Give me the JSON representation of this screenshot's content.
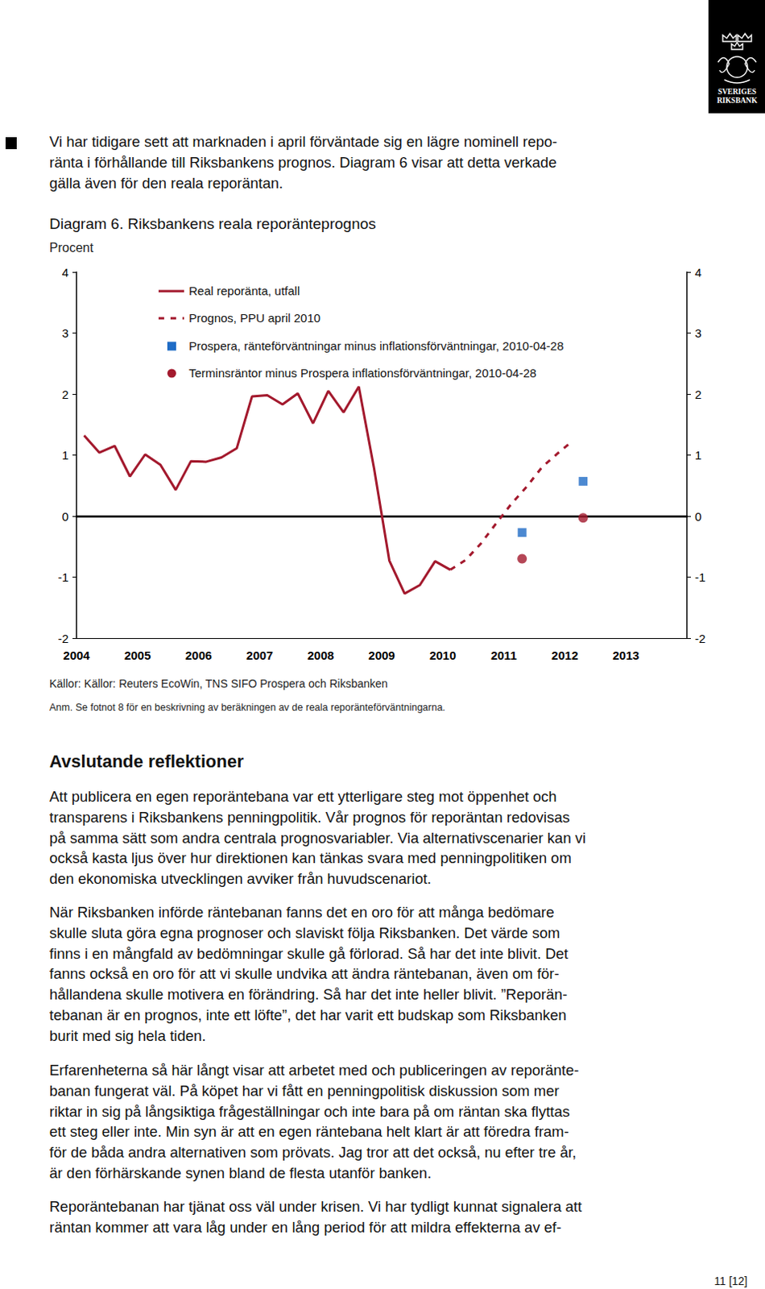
{
  "logo": {
    "lines": [
      "SVERIGES",
      "RIKSBANK"
    ]
  },
  "intro": [
    "Vi har tidigare sett att marknaden i april förväntade sig en lägre nominell repo-",
    "ränta i förhållande till Riksbankens prognos. Diagram 6 visar att detta verkade",
    "gälla även för den reala reporäntan."
  ],
  "chart_data": {
    "type": "line",
    "title": "Diagram 6. Riksbankens reala reporänteprognos",
    "subtitle": "Procent",
    "xlim": [
      2004,
      2014
    ],
    "xticks": [
      2004,
      2005,
      2006,
      2007,
      2008,
      2009,
      2010,
      2011,
      2012,
      2013
    ],
    "ylim": [
      -2,
      4
    ],
    "yticks": [
      -2,
      -1,
      0,
      1,
      2,
      3,
      4
    ],
    "grid": false,
    "series": [
      {
        "name": "Real reporänta, utfall",
        "type": "line",
        "line_style": "solid",
        "color": "#a3192d",
        "x": [
          2004.125,
          2004.375,
          2004.625,
          2004.875,
          2005.125,
          2005.375,
          2005.625,
          2005.875,
          2006.125,
          2006.375,
          2006.625,
          2006.875,
          2007.125,
          2007.375,
          2007.625,
          2007.875,
          2008.125,
          2008.375,
          2008.625,
          2008.875,
          2009.125,
          2009.375,
          2009.625,
          2009.875,
          2010.125
        ],
        "values": [
          1.32,
          1.04,
          1.15,
          0.65,
          1.01,
          0.84,
          0.43,
          0.9,
          0.89,
          0.96,
          1.11,
          1.96,
          1.98,
          1.83,
          2.01,
          1.52,
          2.05,
          1.7,
          2.12,
          0.78,
          -0.73,
          -1.27,
          -1.13,
          -0.74,
          -0.88
        ]
      },
      {
        "name": "Prognos, PPU april 2010",
        "type": "line",
        "line_style": "dashed",
        "color": "#a3192d",
        "x": [
          2010.125,
          2010.375,
          2010.625,
          2010.875,
          2011.125,
          2011.375,
          2011.625,
          2011.875,
          2012.125
        ],
        "values": [
          -0.88,
          -0.72,
          -0.45,
          -0.12,
          0.2,
          0.48,
          0.8,
          1.02,
          1.23
        ]
      },
      {
        "name": "Prospera, ränteförväntningar minus inflationsförväntningar, 2010-04-28",
        "type": "scatter",
        "marker": "square",
        "color": "#1f6cc6",
        "x": [
          2011.3,
          2012.3
        ],
        "values": [
          -0.27,
          0.57
        ]
      },
      {
        "name": "Terminsräntor minus Prospera inflationsförväntningar, 2010-04-28",
        "type": "scatter",
        "marker": "circle",
        "color": "#a3192d",
        "x": [
          2011.3,
          2012.3
        ],
        "values": [
          -0.7,
          -0.03
        ]
      }
    ]
  },
  "figure_source": "Källor: Källor: Reuters EcoWin, TNS SIFO Prospera och Riksbanken",
  "figure_note": "Anm. Se fotnot 8 för en beskrivning av beräkningen av de reala reporänteförväntningarna.",
  "section": {
    "heading": "Avslutande reflektioner",
    "paragraphs": [
      [
        "Att publicera en egen reporäntebana var ett ytterligare steg mot öppenhet och",
        "transparens i Riksbankens penningpolitik. Vår prognos för reporäntan redovisas",
        "på samma sätt som andra centrala prognosvariabler. Via alternativscenarier kan vi",
        "också kasta ljus över hur direktionen kan tänkas svara med penningpolitiken om",
        "den ekonomiska utvecklingen avviker från huvudscenariot."
      ],
      [
        "När Riksbanken införde räntebanan fanns det en oro för att många bedömare",
        "skulle sluta göra egna prognoser och slaviskt följa Riksbanken. Det värde som",
        "finns i en mångfald av bedömningar skulle gå förlorad. Så har det inte blivit. Det",
        "fanns också en oro för att vi skulle undvika att ändra räntebanan, även om för-",
        "hållandena skulle motivera en förändring. Så har det inte heller blivit. ”Reporän-",
        "tebanan är en prognos, inte ett löfte”, det har varit ett budskap som Riksbanken",
        "burit med sig hela tiden."
      ],
      [
        "Erfarenheterna så här långt visar att arbetet med och publiceringen av reporänte-",
        "banan fungerat väl. På köpet har vi fått en penningpolitisk diskussion som mer",
        "riktar in sig på långsiktiga frågeställningar och inte bara på om räntan ska flyttas",
        "ett steg eller inte. Min syn är att en egen räntebana helt klart är att föredra fram-",
        "för de båda andra alternativen som prövats. Jag tror att det också, nu efter tre år,",
        "är den förhärskande synen bland de flesta utanför banken."
      ],
      [
        "Reporäntebanan har tjänat oss väl under krisen. Vi har tydligt kunnat signalera att",
        "räntan kommer att vara låg under en lång period för att mildra effekterna av ef-"
      ]
    ]
  },
  "page_number": "11 [12]"
}
